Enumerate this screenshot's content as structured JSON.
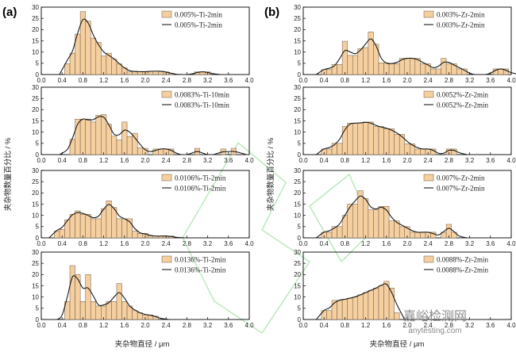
{
  "colors": {
    "bar": "#f5cfa0",
    "bar_edge": "#6b5a44",
    "line": "#1a1a1a",
    "watermark_green": "#3fbf3f"
  },
  "panels": [
    {
      "label": "(a)",
      "xlabel": "夹杂物直径 / μm",
      "ylabel": "夹杂物数量百分比 / %"
    },
    {
      "label": "(b)",
      "xlabel": "夹杂物直径 / μm",
      "ylabel": "夹杂物数量百分比 / %"
    }
  ],
  "watermark": {
    "main": "嘉峪检测网",
    "sub": "anytesting.com"
  },
  "chart_data": [
    {
      "type": "bar",
      "panel": "a",
      "xlim": [
        0,
        4.0
      ],
      "ylim": [
        0,
        30
      ],
      "xticks": [
        "0.0",
        "0.4",
        "0.8",
        "1.2",
        "1.6",
        "2.0",
        "2.4",
        "2.8",
        "3.2",
        "3.6",
        "4.0"
      ],
      "yticks": [
        "0",
        "5",
        "10",
        "15",
        "20",
        "25",
        "30"
      ],
      "legend": {
        "bar": "0.005%-Ti-2min",
        "line": "0.005%-Ti-2min"
      },
      "x": [
        0.5,
        0.6,
        0.7,
        0.8,
        0.9,
        1.0,
        1.1,
        1.2,
        1.3,
        1.4,
        1.5,
        1.6,
        1.7,
        1.8,
        1.9,
        2.0,
        2.1,
        2.2,
        2.3,
        2.4,
        2.5,
        2.6,
        2.7,
        2.8,
        2.9,
        3.0,
        3.1,
        3.2,
        3.3
      ],
      "values": [
        4.8,
        9.5,
        18.0,
        28.0,
        23.8,
        16.2,
        14.3,
        8.3,
        9.5,
        6.8,
        4.8,
        3.0,
        1.2,
        1.5,
        1.2,
        1.2,
        1.5,
        1.5,
        1.5,
        1.2,
        0.5,
        0,
        0,
        0,
        0,
        1.2,
        1.2,
        1.2,
        0
      ]
    },
    {
      "type": "bar",
      "panel": "a",
      "xlim": [
        0,
        4.0
      ],
      "ylim": [
        0,
        30
      ],
      "xticks": [
        "0.0",
        "0.4",
        "0.8",
        "1.2",
        "1.6",
        "2.0",
        "2.4",
        "2.8",
        "3.2",
        "3.6",
        "4.0"
      ],
      "yticks": [
        "0",
        "5",
        "10",
        "15",
        "20",
        "25",
        "30"
      ],
      "legend": {
        "bar": "0.0083%-Ti-10min",
        "line": "0.0083%-Ti-10min"
      },
      "x": [
        0.5,
        0.6,
        0.7,
        0.8,
        0.9,
        1.0,
        1.1,
        1.2,
        1.3,
        1.4,
        1.5,
        1.6,
        1.7,
        1.8,
        1.9,
        2.0,
        2.1,
        2.2,
        2.3,
        2.4,
        2.5,
        2.6,
        2.7,
        2.8,
        2.9,
        3.0,
        3.1,
        3.2,
        3.3,
        3.4,
        3.5,
        3.6,
        3.7,
        3.8
      ],
      "values": [
        0,
        6.8,
        15.8,
        15.8,
        15.8,
        14.5,
        17.5,
        17.8,
        13.5,
        8.2,
        6.5,
        14.5,
        8.0,
        9.5,
        3.0,
        2.8,
        0,
        2.5,
        2.5,
        2.5,
        2.5,
        0,
        0,
        0,
        0,
        2.8,
        0,
        0,
        0,
        0,
        2.5,
        0,
        2.8,
        0
      ]
    },
    {
      "type": "bar",
      "panel": "a",
      "xlim": [
        0,
        4.0
      ],
      "ylim": [
        0,
        30
      ],
      "xticks": [
        "0.0",
        "0.4",
        "0.8",
        "1.2",
        "1.6",
        "2.0",
        "2.4",
        "2.8",
        "3.2",
        "3.6",
        "4.0"
      ],
      "yticks": [
        "0",
        "5",
        "10",
        "15",
        "20",
        "25",
        "30"
      ],
      "legend": {
        "bar": "0.0106%-Ti-2min",
        "line": "0.0106%-Ti-2min"
      },
      "x": [
        0.3,
        0.4,
        0.5,
        0.6,
        0.7,
        0.8,
        0.9,
        1.0,
        1.1,
        1.2,
        1.3,
        1.4,
        1.5,
        1.6,
        1.7,
        1.8,
        1.9,
        2.0,
        2.1,
        2.2,
        2.3,
        2.4,
        2.5,
        2.6
      ],
      "values": [
        3.0,
        3.8,
        8.0,
        10.5,
        12.0,
        10.5,
        10.5,
        8.5,
        8.5,
        13.0,
        16.5,
        13.5,
        8.5,
        8.5,
        8.5,
        3.0,
        2.0,
        2.0,
        0.8,
        0.8,
        0.8,
        0.8,
        0.8,
        0
      ]
    },
    {
      "type": "bar",
      "panel": "a",
      "xlim": [
        0,
        4.0
      ],
      "ylim": [
        0,
        30
      ],
      "xticks": [
        "0.0",
        "0.4",
        "0.8",
        "1.2",
        "1.6",
        "2.0",
        "2.4",
        "2.8",
        "3.2",
        "3.6",
        "4.0"
      ],
      "yticks": [
        "0",
        "5",
        "10",
        "15",
        "20",
        "25",
        "30"
      ],
      "legend": {
        "bar": "0.0136%-Ti-2min",
        "line": "0.0136%-Ti-2min"
      },
      "x": [
        0.3,
        0.4,
        0.5,
        0.6,
        0.7,
        0.8,
        0.9,
        1.0,
        1.1,
        1.2,
        1.3,
        1.4,
        1.5,
        1.6,
        1.7,
        1.8,
        1.9,
        2.0,
        2.1,
        2.2,
        2.3
      ],
      "values": [
        0,
        0,
        8.0,
        24.0,
        20.0,
        8.0,
        20.0,
        8.0,
        6.0,
        6.0,
        8.0,
        8.0,
        16.0,
        8.0,
        6.0,
        4.0,
        3.0,
        2.0,
        2.0,
        1.5,
        0
      ]
    },
    {
      "type": "bar",
      "panel": "b",
      "xlim": [
        0,
        4.0
      ],
      "ylim": [
        0,
        30
      ],
      "xticks": [
        "0.0",
        "0.4",
        "0.8",
        "1.2",
        "1.6",
        "2.0",
        "2.4",
        "2.8",
        "3.2",
        "3.6",
        "4.0"
      ],
      "yticks": [
        "0",
        "5",
        "10",
        "15",
        "20",
        "25",
        "30"
      ],
      "legend": {
        "bar": "0.003%-Zr-2min",
        "line": "0.003%-Zr-2min"
      },
      "x": [
        0.4,
        0.5,
        0.6,
        0.7,
        0.8,
        0.9,
        1.0,
        1.1,
        1.2,
        1.3,
        1.4,
        1.5,
        1.6,
        1.7,
        1.8,
        1.9,
        2.0,
        2.1,
        2.2,
        2.3,
        2.4,
        2.5,
        2.6,
        2.7,
        2.8,
        2.9,
        3.0,
        3.1,
        3.2,
        3.3,
        3.4,
        3.5,
        3.6,
        3.7,
        3.8,
        3.9,
        4.0
      ],
      "values": [
        2.2,
        2.2,
        4.5,
        4.5,
        14.8,
        8.5,
        8.5,
        11.5,
        12.0,
        19.0,
        13.5,
        5.2,
        5.2,
        4.8,
        4.8,
        7.2,
        7.2,
        7.2,
        7.2,
        4.8,
        4.8,
        2.5,
        2.5,
        7.2,
        4.8,
        4.8,
        2.5,
        2.5,
        0,
        0,
        0,
        0,
        0,
        2.5,
        2.5,
        2.5,
        0
      ]
    },
    {
      "type": "bar",
      "panel": "b",
      "xlim": [
        0,
        4.0
      ],
      "ylim": [
        0,
        30
      ],
      "xticks": [
        "0.0",
        "0.4",
        "0.8",
        "1.2",
        "1.6",
        "2.0",
        "2.4",
        "2.8",
        "3.2",
        "3.6",
        "4.0"
      ],
      "yticks": [
        "0",
        "5",
        "10",
        "15",
        "20",
        "25",
        "30"
      ],
      "legend": {
        "bar": "0.0052%-Zr-2min",
        "line": "0.0052%-Zr-2min"
      },
      "x": [
        0.4,
        0.5,
        0.6,
        0.7,
        0.8,
        0.9,
        1.0,
        1.1,
        1.2,
        1.3,
        1.4,
        1.5,
        1.6,
        1.7,
        1.8,
        1.9,
        2.0,
        2.1,
        2.2,
        2.3,
        2.4,
        2.5,
        2.6,
        2.7,
        2.8,
        2.9,
        3.0
      ],
      "values": [
        2.5,
        2.5,
        5.0,
        5.0,
        12.5,
        14.0,
        14.0,
        14.0,
        14.5,
        14.5,
        12.5,
        12.5,
        11.5,
        11.5,
        9.0,
        9.0,
        4.8,
        4.8,
        2.5,
        2.5,
        2.5,
        2.5,
        0,
        0,
        2.5,
        2.5,
        0
      ]
    },
    {
      "type": "bar",
      "panel": "b",
      "xlim": [
        0,
        4.0
      ],
      "ylim": [
        0,
        30
      ],
      "xticks": [
        "0.0",
        "0.4",
        "0.8",
        "1.2",
        "1.6",
        "2.0",
        "2.4",
        "2.8",
        "3.2",
        "3.6",
        "4.0"
      ],
      "yticks": [
        "0",
        "5",
        "10",
        "15",
        "20",
        "25",
        "30"
      ],
      "legend": {
        "bar": "0.007%-Zr-2min",
        "line": "0.007%-Zr-2min"
      },
      "x": [
        0.4,
        0.5,
        0.6,
        0.7,
        0.8,
        0.9,
        1.0,
        1.1,
        1.2,
        1.3,
        1.4,
        1.5,
        1.6,
        1.7,
        1.8,
        1.9,
        2.0,
        2.1,
        2.2,
        2.3,
        2.4,
        2.5,
        2.6,
        2.7,
        2.8,
        2.9,
        3.0
      ],
      "values": [
        2.5,
        2.5,
        5.0,
        5.0,
        10.0,
        15.0,
        15.0,
        21.0,
        17.5,
        12.5,
        12.5,
        14.0,
        14.0,
        7.5,
        7.5,
        5.0,
        5.0,
        2.5,
        2.5,
        2.5,
        2.5,
        2.5,
        0,
        2.5,
        6.0,
        2.5,
        0
      ]
    },
    {
      "type": "bar",
      "panel": "b",
      "xlim": [
        0,
        4.0
      ],
      "ylim": [
        0,
        30
      ],
      "xticks": [
        "0.0",
        "0.4",
        "0.8",
        "1.2",
        "1.6",
        "2.0",
        "2.4",
        "2.8",
        "3.2",
        "3.6",
        "4.0"
      ],
      "yticks": [
        "0",
        "5",
        "10",
        "15",
        "20",
        "25",
        "30"
      ],
      "legend": {
        "bar": "0.0088%-Zr-2min",
        "line": "0.0088%-Zr-2min"
      },
      "x": [
        0.4,
        0.5,
        0.6,
        0.7,
        0.8,
        0.9,
        1.0,
        1.1,
        1.2,
        1.3,
        1.4,
        1.5,
        1.6,
        1.7,
        1.8
      ],
      "values": [
        4.0,
        4.0,
        8.5,
        8.5,
        9.0,
        9.5,
        10.0,
        11.0,
        12.0,
        13.0,
        14.0,
        15.0,
        17.0,
        14.0,
        3.0
      ]
    }
  ]
}
